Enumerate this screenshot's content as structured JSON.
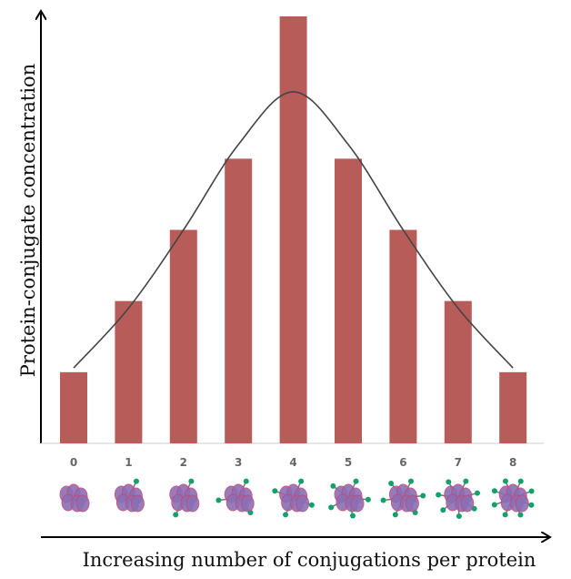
{
  "chart_data": {
    "type": "bar",
    "x_label": "Increasing number of conjugations per protein",
    "y_label": "Protein-conjugate concentration",
    "categories": [
      "0",
      "1",
      "2",
      "3",
      "4",
      "5",
      "6",
      "7",
      "8"
    ],
    "values": [
      1,
      2,
      3,
      4,
      6,
      4,
      3,
      2,
      1
    ],
    "color": "#b85c5a",
    "curve_values": [
      1.06,
      1.9,
      3.0,
      4.2,
      4.94,
      4.2,
      3.0,
      1.9,
      1.06
    ],
    "curve_color": "#444444",
    "ylim": [
      0,
      6
    ]
  }
}
